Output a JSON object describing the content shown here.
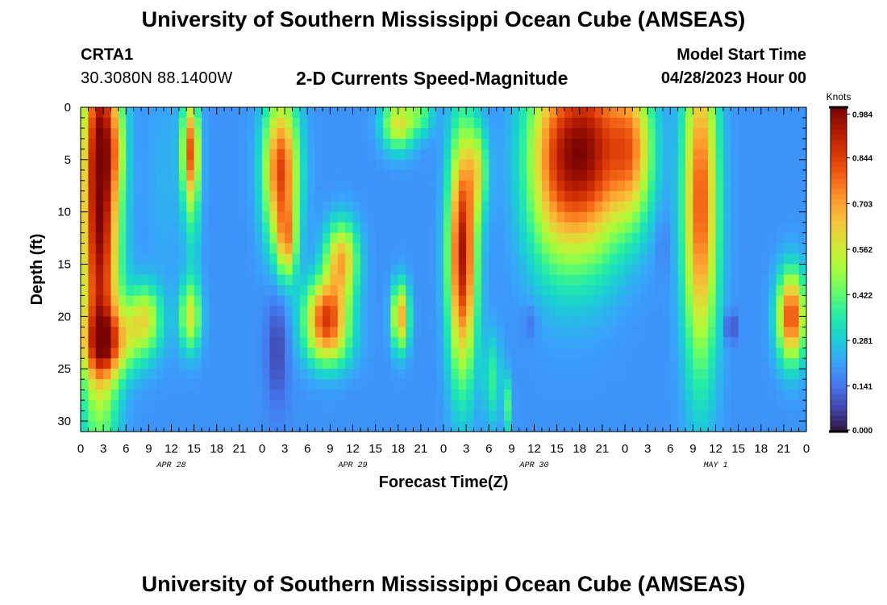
{
  "header": {
    "title": "University of Southern Mississippi Ocean Cube (AMSEAS)",
    "station_id": "CRTA1",
    "station_coords": "30.3080N  88.1400W",
    "subtitle": "2-D Currents Speed-Magnitude",
    "model_start_label": "Model Start Time",
    "model_start_time": "04/28/2023 Hour 00"
  },
  "footer": {
    "title": "University of Southern Mississippi Ocean Cube (AMSEAS)"
  },
  "colors": {
    "background": "#ffffff",
    "axis": "#000000",
    "colormap": [
      "#30123b",
      "#4145ab",
      "#4675ed",
      "#39a2fc",
      "#1bcfd4",
      "#24eca6",
      "#61fc6c",
      "#a4fc3b",
      "#d1e834",
      "#f3c63a",
      "#fe9b2d",
      "#f36315",
      "#d93806",
      "#b11901",
      "#7a0402"
    ]
  },
  "chart_data": {
    "type": "heatmap",
    "title": "2-D Currents Speed-Magnitude",
    "xlabel": "Forecast Time(Z)",
    "ylabel": "Depth (ft)",
    "x_units": "hours since 04/28/2023 00Z",
    "xlim": [
      0,
      96
    ],
    "ylim": [
      0,
      31
    ],
    "y_inverted": true,
    "x_ticks": [
      0,
      3,
      6,
      9,
      12,
      15,
      18,
      21,
      24,
      27,
      30,
      33,
      36,
      39,
      42,
      45,
      48,
      51,
      54,
      57,
      60,
      63,
      66,
      69,
      72,
      75,
      78,
      81,
      84,
      87,
      90,
      93,
      96
    ],
    "x_tick_labels": [
      "0",
      "3",
      "6",
      "9",
      "12",
      "15",
      "18",
      "21",
      "0",
      "3",
      "6",
      "9",
      "12",
      "15",
      "18",
      "21",
      "0",
      "3",
      "6",
      "9",
      "12",
      "15",
      "18",
      "21",
      "0",
      "3",
      "6",
      "9",
      "12",
      "15",
      "18",
      "21",
      "0"
    ],
    "date_labels": [
      {
        "label": "APR 28",
        "x": 12
      },
      {
        "label": "APR 29",
        "x": 36
      },
      {
        "label": "APR 30",
        "x": 60
      },
      {
        "label": "MAY 1",
        "x": 84
      }
    ],
    "y_ticks": [
      0,
      5,
      10,
      15,
      20,
      25,
      30
    ],
    "y_tick_labels": [
      "0",
      "5",
      "10",
      "15",
      "20",
      "25",
      "30"
    ],
    "colorbar": {
      "label": "Knots",
      "min": 0.0,
      "max": 1.0,
      "ticks": [
        0.984,
        0.844,
        0.703,
        0.562,
        0.422,
        0.281,
        0.141,
        0.0
      ],
      "tick_labels": [
        "0.984",
        "0.844",
        "0.703",
        "0.562",
        "0.422",
        "0.281",
        "0.141",
        "0.000"
      ]
    },
    "background_speed": 0.19,
    "features": [
      {
        "t": 2.5,
        "d": 11,
        "st": 1.8,
        "sd": 13,
        "v": 0.78
      },
      {
        "t": 3,
        "d": 2,
        "st": 1.5,
        "sd": 5,
        "v": 0.2
      },
      {
        "t": 5,
        "d": 22,
        "st": 3,
        "sd": 2.5,
        "v": 0.25
      },
      {
        "t": 3,
        "d": 23,
        "st": 2,
        "sd": 2,
        "v": 0.2
      },
      {
        "t": 8.5,
        "d": 20,
        "st": 1.5,
        "sd": 2.2,
        "v": 0.32
      },
      {
        "t": 14.5,
        "d": 20,
        "st": 1,
        "sd": 2.3,
        "v": 0.37
      },
      {
        "t": 14.5,
        "d": 4,
        "st": 0.8,
        "sd": 3.5,
        "v": 0.5
      },
      {
        "t": 14.8,
        "d": 8,
        "st": 0.8,
        "sd": 6,
        "v": 0.15
      },
      {
        "t": 11.2,
        "d": 7,
        "st": 1.8,
        "sd": 7,
        "v": 0.05
      },
      {
        "t": 4.8,
        "d": 4,
        "st": 0.9,
        "sd": 3,
        "v": 0.12
      },
      {
        "t": 26.5,
        "d": 6,
        "st": 1.6,
        "sd": 5,
        "v": 0.65
      },
      {
        "t": 27.3,
        "d": 13,
        "st": 0.9,
        "sd": 2.5,
        "v": 0.35
      },
      {
        "t": 26,
        "d": 23,
        "st": 1,
        "sd": 4,
        "v": -0.12
      },
      {
        "t": 32.5,
        "d": 20,
        "st": 2,
        "sd": 2.5,
        "v": 0.62
      },
      {
        "t": 34.5,
        "d": 14.5,
        "st": 1.5,
        "sd": 2.5,
        "v": 0.48
      },
      {
        "t": 33,
        "d": 23,
        "st": 2.2,
        "sd": 1.8,
        "v": 0.15
      },
      {
        "t": 42.3,
        "d": 20,
        "st": 0.8,
        "sd": 2.2,
        "v": 0.5
      },
      {
        "t": 42,
        "d": 1.5,
        "st": 1.5,
        "sd": 1.8,
        "v": 0.4
      },
      {
        "t": 45,
        "d": 0.5,
        "st": 1.2,
        "sd": 1.5,
        "v": 0.2
      },
      {
        "t": 50.5,
        "d": 14,
        "st": 1.3,
        "sd": 8,
        "v": 0.75
      },
      {
        "t": 52.5,
        "d": 6,
        "st": 1,
        "sd": 3,
        "v": 0.28
      },
      {
        "t": 54.5,
        "d": 26,
        "st": 0.8,
        "sd": 3,
        "v": 0.18
      },
      {
        "t": 56.5,
        "d": 28.5,
        "st": 0.4,
        "sd": 2,
        "v": 0.2
      },
      {
        "t": 63,
        "d": 5,
        "st": 3,
        "sd": 7,
        "v": 0.55
      },
      {
        "t": 68,
        "d": 4,
        "st": 3,
        "sd": 7,
        "v": 0.6
      },
      {
        "t": 73,
        "d": 4,
        "st": 2,
        "sd": 5,
        "v": 0.45
      },
      {
        "t": 59.5,
        "d": 20.5,
        "st": 0.7,
        "sd": 1.2,
        "v": -0.06
      },
      {
        "t": 82,
        "d": 9,
        "st": 1.6,
        "sd": 11,
        "v": 0.62
      },
      {
        "t": 86,
        "d": 21,
        "st": 0.4,
        "sd": 1,
        "v": -0.2
      },
      {
        "t": 94,
        "d": 20,
        "st": 1.3,
        "sd": 3,
        "v": 0.65
      },
      {
        "t": 77,
        "d": 13,
        "st": 0.5,
        "sd": 2,
        "v": -0.05
      }
    ]
  }
}
